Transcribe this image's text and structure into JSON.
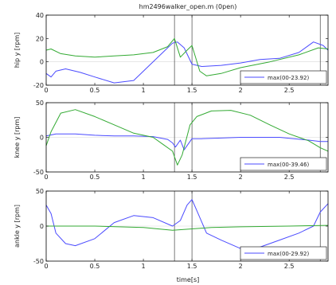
{
  "chart_data": {
    "type": "line",
    "title": "hm2496walker_open.m (0pen)",
    "xlabel": "time[s]",
    "xlim": [
      0,
      2.9
    ],
    "xticks": [
      0,
      0.5,
      1,
      1.5,
      2,
      2.5
    ],
    "xtick_labels": [
      "0",
      "0.5",
      "1",
      "1.5",
      "2",
      "2.5"
    ],
    "vlines": [
      1.32,
      1.5,
      2.82
    ],
    "grid": false,
    "series_colors": [
      "#4b4bff",
      "#33aa33"
    ],
    "panels": [
      {
        "ylabel": "hip y [rpm]",
        "ylim": [
          -20,
          40
        ],
        "yticks": [
          -20,
          0,
          20,
          40
        ],
        "ytick_labels": [
          "-20",
          "0",
          "20",
          "40"
        ],
        "legend": "max(00-23.92)",
        "legend_position": "lower-right",
        "series": [
          {
            "x": [
              0,
              0.05,
              0.1,
              0.2,
              0.35,
              0.5,
              0.7,
              0.9,
              1.05,
              1.2,
              1.3,
              1.35,
              1.42,
              1.5,
              1.6,
              1.8,
              2.0,
              2.2,
              2.4,
              2.6,
              2.75,
              2.85,
              2.9
            ],
            "y": [
              -10,
              -13,
              -8,
              -6,
              -9,
              -13,
              -18,
              -16,
              -4,
              8,
              16,
              17,
              12,
              -2,
              -4,
              -3,
              -1,
              2,
              3,
              8,
              17,
              14,
              10
            ]
          },
          {
            "x": [
              0,
              0.05,
              0.15,
              0.3,
              0.5,
              0.7,
              0.9,
              1.1,
              1.25,
              1.32,
              1.38,
              1.45,
              1.5,
              1.58,
              1.65,
              1.8,
              2.0,
              2.3,
              2.6,
              2.8,
              2.9
            ],
            "y": [
              10,
              11,
              7,
              5,
              4,
              5,
              6,
              8,
              13,
              20,
              4,
              10,
              14,
              -8,
              -12,
              -10,
              -5,
              0,
              6,
              12,
              11
            ]
          }
        ]
      },
      {
        "ylabel": "knee y [rpm]",
        "ylim": [
          -50,
          50
        ],
        "yticks": [
          -50,
          0,
          50
        ],
        "ytick_labels": [
          "-50",
          "0",
          "50"
        ],
        "legend": "max(00-39.46)",
        "legend_position": "lower-right",
        "series": [
          {
            "x": [
              0,
              0.1,
              0.3,
              0.5,
              0.7,
              0.9,
              1.1,
              1.25,
              1.3,
              1.33,
              1.38,
              1.42,
              1.5,
              1.6,
              1.8,
              2.0,
              2.4,
              2.7,
              2.82,
              2.9
            ],
            "y": [
              2,
              5,
              5,
              3,
              2,
              2,
              1,
              -3,
              -8,
              -14,
              -4,
              -18,
              -2,
              -2,
              -1,
              0,
              0,
              -4,
              -6,
              -6
            ]
          },
          {
            "x": [
              0,
              0.05,
              0.15,
              0.3,
              0.5,
              0.7,
              0.9,
              1.1,
              1.2,
              1.3,
              1.35,
              1.4,
              1.48,
              1.55,
              1.7,
              1.9,
              2.1,
              2.3,
              2.5,
              2.7,
              2.82,
              2.9
            ],
            "y": [
              -12,
              8,
              35,
              40,
              30,
              18,
              6,
              0,
              -10,
              -20,
              -40,
              -25,
              18,
              30,
              38,
              39,
              32,
              18,
              5,
              -5,
              -15,
              -20
            ]
          }
        ]
      },
      {
        "ylabel": "ankle y [rpm]",
        "ylim": [
          -50,
          50
        ],
        "yticks": [
          -50,
          0,
          50
        ],
        "ytick_labels": [
          "-50",
          "0",
          "50"
        ],
        "legend": "max(00-29.92)",
        "legend_position": "lower-right",
        "series": [
          {
            "x": [
              0,
              0.05,
              0.1,
              0.2,
              0.3,
              0.5,
              0.7,
              0.9,
              1.1,
              1.3,
              1.38,
              1.45,
              1.5,
              1.55,
              1.65,
              1.8,
              2.0,
              2.2,
              2.4,
              2.6,
              2.75,
              2.82,
              2.9
            ],
            "y": [
              30,
              18,
              -10,
              -25,
              -28,
              -18,
              5,
              15,
              12,
              0,
              8,
              30,
              38,
              22,
              -10,
              -20,
              -32,
              -30,
              -20,
              -10,
              0,
              20,
              32
            ]
          },
          {
            "x": [
              0,
              0.5,
              1.0,
              1.3,
              1.5,
              1.7,
              2.0,
              2.5,
              2.9
            ],
            "y": [
              0,
              0,
              -2,
              -6,
              -4,
              -2,
              -1,
              0,
              1
            ]
          }
        ]
      }
    ]
  }
}
